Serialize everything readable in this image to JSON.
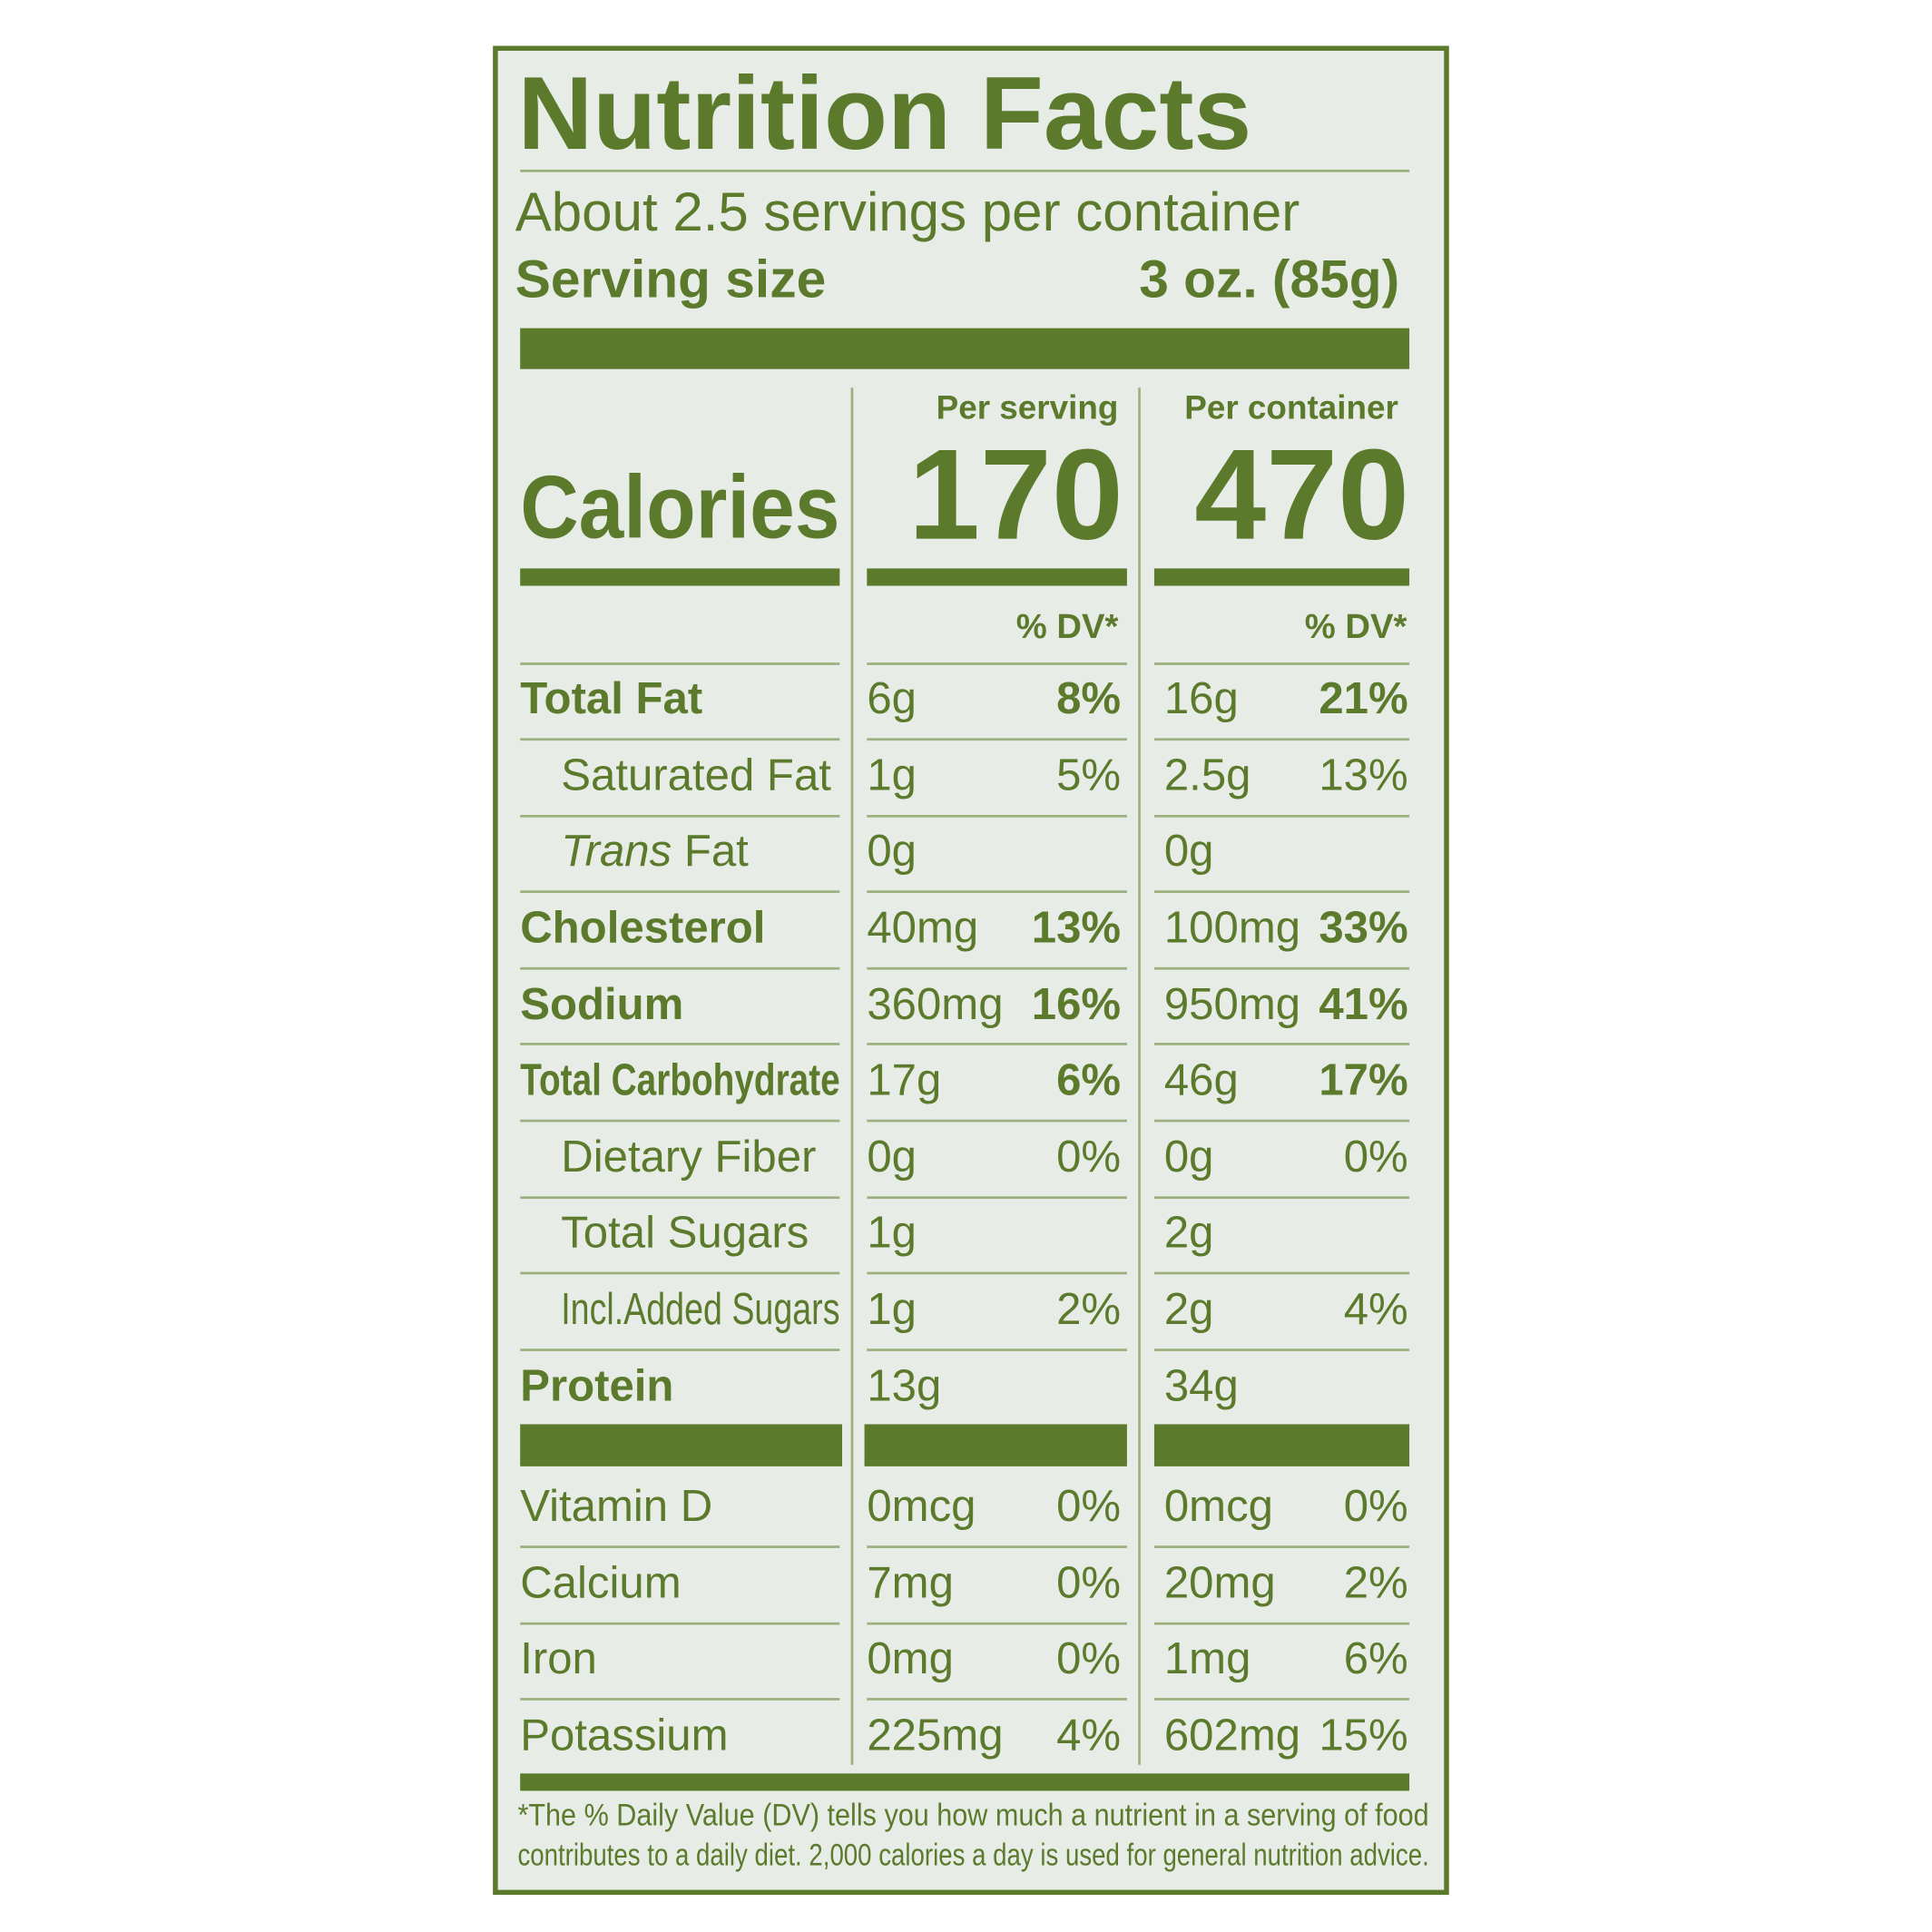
{
  "title": "Nutrition Facts",
  "servings_per_container": "About 2.5 servings per container",
  "serving_size": {
    "label": "Serving size",
    "value": "3 oz. (85g)"
  },
  "column_headers": [
    "Per serving",
    "Per container"
  ],
  "calories": {
    "label": "Calories",
    "serving": "170",
    "container": "470"
  },
  "dv_header": "% DV*",
  "nutrients": [
    {
      "name": "Total Fat",
      "bold": true,
      "indent": 0,
      "serving": {
        "amount": "6g",
        "dv": "8%"
      },
      "container": {
        "amount": "16g",
        "dv": "21%"
      }
    },
    {
      "name": "Saturated Fat",
      "bold": false,
      "indent": 1,
      "serving": {
        "amount": "1g",
        "dv": "5%"
      },
      "container": {
        "amount": "2.5g",
        "dv": "13%"
      }
    },
    {
      "name": "Trans Fat",
      "bold": false,
      "indent": 1,
      "italic_first_word": true,
      "serving": {
        "amount": "0g"
      },
      "container": {
        "amount": "0g"
      }
    },
    {
      "name": "Cholesterol",
      "bold": true,
      "indent": 0,
      "serving": {
        "amount": "40mg",
        "dv": "13%"
      },
      "container": {
        "amount": "100mg",
        "dv": "33%"
      }
    },
    {
      "name": "Sodium",
      "bold": true,
      "indent": 0,
      "serving": {
        "amount": "360mg",
        "dv": "16%"
      },
      "container": {
        "amount": "950mg",
        "dv": "41%"
      }
    },
    {
      "name": "Total Carbohydrate",
      "bold": true,
      "indent": 0,
      "serving": {
        "amount": "17g",
        "dv": "6%"
      },
      "container": {
        "amount": "46g",
        "dv": "17%"
      }
    },
    {
      "name": "Dietary Fiber",
      "bold": false,
      "indent": 1,
      "serving": {
        "amount": "0g",
        "dv": "0%"
      },
      "container": {
        "amount": "0g",
        "dv": "0%"
      }
    },
    {
      "name": "Total Sugars",
      "bold": false,
      "indent": 1,
      "serving": {
        "amount": "1g"
      },
      "container": {
        "amount": "2g"
      }
    },
    {
      "name": "Incl.Added Sugars",
      "bold": false,
      "indent": 1,
      "serving": {
        "amount": "1g",
        "dv": "2%"
      },
      "container": {
        "amount": "2g",
        "dv": "4%"
      }
    },
    {
      "name": "Protein",
      "bold": true,
      "indent": 0,
      "serving": {
        "amount": "13g"
      },
      "container": {
        "amount": "34g"
      }
    }
  ],
  "vitamins": [
    {
      "name": "Vitamin D",
      "serving": {
        "amount": "0mcg",
        "dv": "0%"
      },
      "container": {
        "amount": "0mcg",
        "dv": "0%"
      }
    },
    {
      "name": "Calcium",
      "serving": {
        "amount": "7mg",
        "dv": "0%"
      },
      "container": {
        "amount": "20mg",
        "dv": "2%"
      }
    },
    {
      "name": "Iron",
      "serving": {
        "amount": "0mg",
        "dv": "0%"
      },
      "container": {
        "amount": "1mg",
        "dv": "6%"
      }
    },
    {
      "name": "Potassium",
      "serving": {
        "amount": "225mg",
        "dv": "4%"
      },
      "container": {
        "amount": "602mg",
        "dv": "15%"
      }
    }
  ],
  "footnote": [
    "*The % Daily Value (DV) tells you how much a nutrient in a serving of food",
    "contributes to a daily diet. 2,000 calories a day is used for general nutrition advice."
  ]
}
